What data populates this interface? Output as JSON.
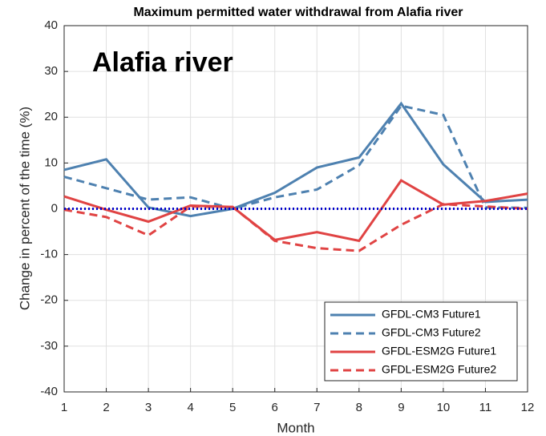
{
  "chart_data": {
    "type": "line",
    "title": "Maximum permitted water withdrawal from Alafia river",
    "annotation": "Alafia river",
    "x_label": "Month",
    "y_label": "Change in percent of the time (%)",
    "x": [
      1,
      2,
      3,
      4,
      5,
      6,
      7,
      8,
      9,
      10,
      11,
      12
    ],
    "xlim": [
      1,
      12
    ],
    "xticks": [
      1,
      2,
      3,
      4,
      5,
      6,
      7,
      8,
      9,
      10,
      11,
      12
    ],
    "ylim": [
      -40,
      40
    ],
    "yticks": [
      -40,
      -30,
      -20,
      -10,
      0,
      10,
      20,
      30,
      40
    ],
    "grid": true,
    "legend": "lower right",
    "reference_line": {
      "value": 0,
      "color": "#0000cc"
    },
    "series": [
      {
        "name": "GFDL-CM3 Future1",
        "color": "#4e81b0",
        "dash": false,
        "values": [
          8.5,
          10.8,
          0.3,
          -1.6,
          0,
          3.5,
          9,
          11.2,
          23,
          9.7,
          1.5,
          2
        ]
      },
      {
        "name": "GFDL-CM3 Future2",
        "color": "#4e81b0",
        "dash": true,
        "values": [
          7,
          4.5,
          2,
          2.5,
          0,
          2.5,
          4.2,
          9.5,
          22.5,
          20.5,
          0.3,
          0.2
        ]
      },
      {
        "name": "GFDL-ESM2G Future1",
        "color": "#e04343",
        "dash": false,
        "values": [
          2.7,
          -0.2,
          -2.8,
          0.7,
          0.4,
          -6.8,
          -5.1,
          -7,
          6.2,
          0.9,
          1.7,
          3.3
        ]
      },
      {
        "name": "GFDL-ESM2G Future2",
        "color": "#e04343",
        "dash": true,
        "values": [
          -0.2,
          -1.8,
          -5.8,
          0.5,
          0.4,
          -7,
          -8.6,
          -9.2,
          -3.5,
          1,
          0.5,
          0
        ]
      }
    ]
  }
}
